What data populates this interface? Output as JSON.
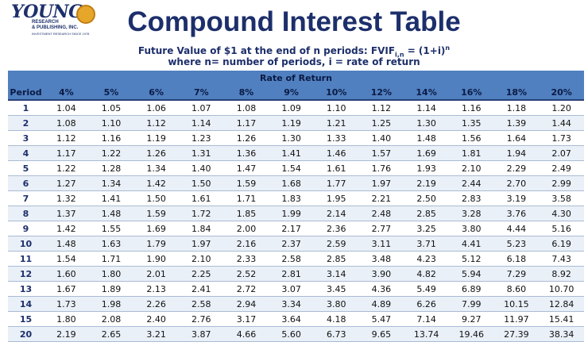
{
  "logo": {
    "word": "YOUNG",
    "line1": "RESEARCH",
    "line2": "& PUBLISHING, INC.",
    "line3": "INVESTMENT RESEARCH SINCE 1978"
  },
  "title": "Compound Interest Table",
  "subtitle": {
    "prefix": "Future Value of $1 at the end of n periods: FVIF",
    "sub": "i,n",
    "middle": " = (1+i)",
    "sup": "n",
    "line2": "where n= number of periods, i = rate of return"
  },
  "table": {
    "group_header": "Rate of Return",
    "period_header": "Period",
    "rates": [
      "4%",
      "5%",
      "6%",
      "7%",
      "8%",
      "9%",
      "10%",
      "12%",
      "14%",
      "16%",
      "18%",
      "20%"
    ],
    "rows": [
      {
        "period": "1",
        "values": [
          "1.04",
          "1.05",
          "1.06",
          "1.07",
          "1.08",
          "1.09",
          "1.10",
          "1.12",
          "1.14",
          "1.16",
          "1.18",
          "1.20"
        ]
      },
      {
        "period": "2",
        "values": [
          "1.08",
          "1.10",
          "1.12",
          "1.14",
          "1.17",
          "1.19",
          "1.21",
          "1.25",
          "1.30",
          "1.35",
          "1.39",
          "1.44"
        ]
      },
      {
        "period": "3",
        "values": [
          "1.12",
          "1.16",
          "1.19",
          "1.23",
          "1.26",
          "1.30",
          "1.33",
          "1.40",
          "1.48",
          "1.56",
          "1.64",
          "1.73"
        ]
      },
      {
        "period": "4",
        "values": [
          "1.17",
          "1.22",
          "1.26",
          "1.31",
          "1.36",
          "1.41",
          "1.46",
          "1.57",
          "1.69",
          "1.81",
          "1.94",
          "2.07"
        ]
      },
      {
        "period": "5",
        "values": [
          "1.22",
          "1.28",
          "1.34",
          "1.40",
          "1.47",
          "1.54",
          "1.61",
          "1.76",
          "1.93",
          "2.10",
          "2.29",
          "2.49"
        ]
      },
      {
        "period": "6",
        "values": [
          "1.27",
          "1.34",
          "1.42",
          "1.50",
          "1.59",
          "1.68",
          "1.77",
          "1.97",
          "2.19",
          "2.44",
          "2.70",
          "2.99"
        ]
      },
      {
        "period": "7",
        "values": [
          "1.32",
          "1.41",
          "1.50",
          "1.61",
          "1.71",
          "1.83",
          "1.95",
          "2.21",
          "2.50",
          "2.83",
          "3.19",
          "3.58"
        ]
      },
      {
        "period": "8",
        "values": [
          "1.37",
          "1.48",
          "1.59",
          "1.72",
          "1.85",
          "1.99",
          "2.14",
          "2.48",
          "2.85",
          "3.28",
          "3.76",
          "4.30"
        ]
      },
      {
        "period": "9",
        "values": [
          "1.42",
          "1.55",
          "1.69",
          "1.84",
          "2.00",
          "2.17",
          "2.36",
          "2.77",
          "3.25",
          "3.80",
          "4.44",
          "5.16"
        ]
      },
      {
        "period": "10",
        "values": [
          "1.48",
          "1.63",
          "1.79",
          "1.97",
          "2.16",
          "2.37",
          "2.59",
          "3.11",
          "3.71",
          "4.41",
          "5.23",
          "6.19"
        ]
      },
      {
        "period": "11",
        "values": [
          "1.54",
          "1.71",
          "1.90",
          "2.10",
          "2.33",
          "2.58",
          "2.85",
          "3.48",
          "4.23",
          "5.12",
          "6.18",
          "7.43"
        ]
      },
      {
        "period": "12",
        "values": [
          "1.60",
          "1.80",
          "2.01",
          "2.25",
          "2.52",
          "2.81",
          "3.14",
          "3.90",
          "4.82",
          "5.94",
          "7.29",
          "8.92"
        ]
      },
      {
        "period": "13",
        "values": [
          "1.67",
          "1.89",
          "2.13",
          "2.41",
          "2.72",
          "3.07",
          "3.45",
          "4.36",
          "5.49",
          "6.89",
          "8.60",
          "10.70"
        ]
      },
      {
        "period": "14",
        "values": [
          "1.73",
          "1.98",
          "2.26",
          "2.58",
          "2.94",
          "3.34",
          "3.80",
          "4.89",
          "6.26",
          "7.99",
          "10.15",
          "12.84"
        ]
      },
      {
        "period": "15",
        "values": [
          "1.80",
          "2.08",
          "2.40",
          "2.76",
          "3.17",
          "3.64",
          "4.18",
          "5.47",
          "7.14",
          "9.27",
          "11.97",
          "15.41"
        ]
      },
      {
        "period": "20",
        "values": [
          "2.19",
          "2.65",
          "3.21",
          "3.87",
          "4.66",
          "5.60",
          "6.73",
          "9.65",
          "13.74",
          "19.46",
          "27.39",
          "38.34"
        ]
      }
    ]
  }
}
